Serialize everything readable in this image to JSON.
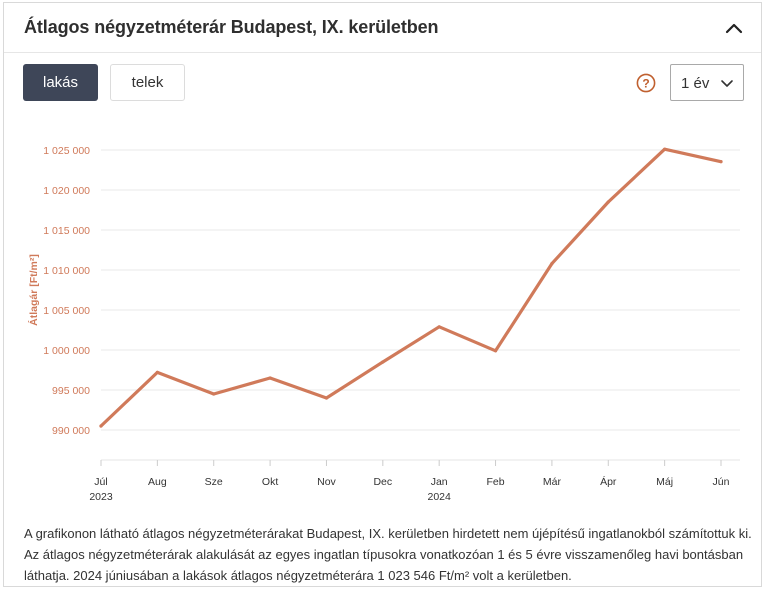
{
  "header": {
    "title": "Átlagos négyzetméterár Budapest, IX. kerületben"
  },
  "tabs": [
    {
      "label": "lakás",
      "active": true
    },
    {
      "label": "telek",
      "active": false
    }
  ],
  "period_select": {
    "value": "1 év"
  },
  "colors": {
    "line": "#d07a5a",
    "axis_label": "#d07a5a",
    "tab_active_bg": "#3e4658",
    "help_icon": "#c0602f"
  },
  "icons": {
    "collapse": "chevron-up-icon",
    "help": "question-circle-icon",
    "dropdown": "chevron-down-icon"
  },
  "chart_data": {
    "type": "line",
    "title": "",
    "ylabel": "Átlagár [Ft/m²]",
    "xlabel": "",
    "categories": [
      "Júl",
      "Aug",
      "Sze",
      "Okt",
      "Nov",
      "Dec",
      "Jan",
      "Feb",
      "Már",
      "Ápr",
      "Máj",
      "Jún"
    ],
    "category_years": [
      "2023",
      "",
      "",
      "",
      "",
      "",
      "2024",
      "",
      "",
      "",
      "",
      ""
    ],
    "series": [
      {
        "values": [
          990500,
          997200,
          994500,
          996500,
          994000,
          998500,
          1002900,
          999900,
          1010800,
          1018500,
          1025100,
          1023546
        ]
      }
    ],
    "yticks": [
      990000,
      995000,
      1000000,
      1005000,
      1010000,
      1015000,
      1020000,
      1025000
    ],
    "ytick_labels": [
      "990 000",
      "995 000",
      "1 000 000",
      "1 005 000",
      "1 010 000",
      "1 015 000",
      "1 020 000",
      "1 025 000"
    ],
    "ylim": [
      987500,
      1027500
    ],
    "grid": true,
    "legend": "none"
  },
  "description": "A grafikonon látható átlagos négyzetméterárakat Budapest, IX. kerületben hirdetett nem újépítésű ingatlanokból számítottuk ki. Az átlagos négyzetméterárak alakulását az egyes ingatlan típusokra vonatkozóan 1 és 5 évre visszamenőleg havi bontásban láthatja. 2024 júniusában a lakások átlagos négyzetméterára 1 023 546 Ft/m² volt a kerületben."
}
